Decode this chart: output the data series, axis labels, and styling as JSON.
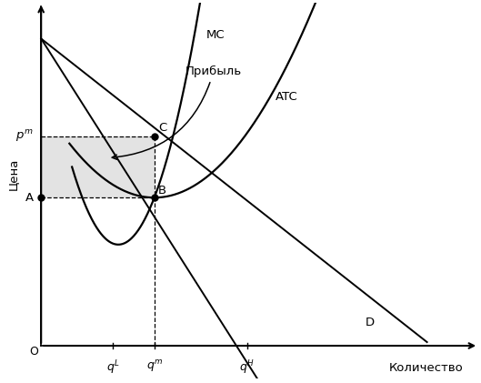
{
  "xlabel": "Количество",
  "ylabel": "Цена",
  "origin_label": "O",
  "background_color": "#ffffff",
  "shading_color": "#cccccc",
  "shading_alpha": 0.55,
  "qL": 1.4,
  "qm": 2.2,
  "qH": 4.0,
  "pm": 5.8,
  "atc_at_qm": 4.1,
  "xmax": 8.5,
  "ymax": 9.5,
  "profit_annotation": "Прибыль",
  "MC_label": "MC",
  "ATC_label": "ATC",
  "D_label": "D"
}
